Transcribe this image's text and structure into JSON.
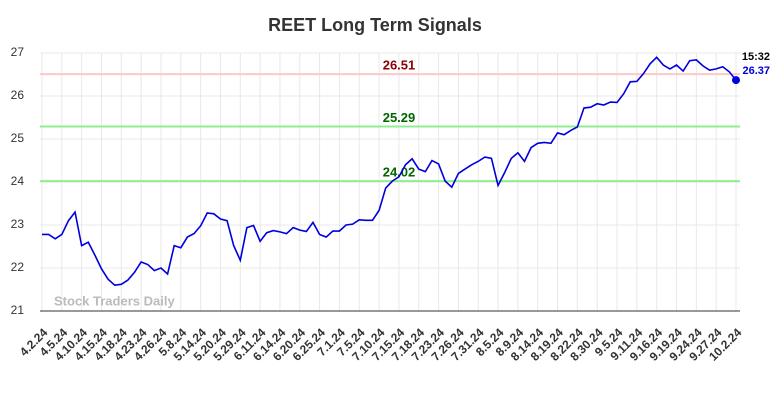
{
  "chart_data": {
    "type": "line",
    "title": "REET Long Term Signals",
    "categories": [
      "4.2.24",
      null,
      null,
      "4.5.24",
      null,
      null,
      "4.10.24",
      null,
      null,
      "4.15.24",
      null,
      null,
      "4.18.24",
      null,
      null,
      "4.23.24",
      null,
      null,
      "4.26.24",
      null,
      null,
      "5.8.24",
      null,
      null,
      "5.14.24",
      null,
      null,
      "5.20.24",
      null,
      null,
      "5.29.24",
      null,
      null,
      "6.11.24",
      null,
      null,
      "6.14.24",
      null,
      null,
      "6.20.24",
      null,
      null,
      "6.25.24",
      null,
      null,
      "7.1.24",
      null,
      null,
      "7.5.24",
      null,
      null,
      "7.10.24",
      null,
      null,
      "7.15.24",
      null,
      null,
      "7.18.24",
      null,
      null,
      "7.23.24",
      null,
      null,
      "7.26.24",
      null,
      null,
      "7.31.24",
      null,
      null,
      "8.5.24",
      null,
      null,
      "8.9.24",
      null,
      null,
      "8.14.24",
      null,
      null,
      "8.19.24",
      null,
      null,
      "8.22.24",
      null,
      null,
      "8.30.24",
      null,
      null,
      "9.5.24",
      null,
      null,
      "9.11.24",
      null,
      null,
      "9.16.24",
      null,
      null,
      "9.19.24",
      null,
      null,
      "9.24.24",
      null,
      null,
      "9.27.24",
      null,
      null,
      "10.2.24"
    ],
    "values": [
      22.78,
      22.78,
      22.68,
      22.78,
      23.1,
      23.3,
      22.52,
      22.6,
      22.3,
      21.98,
      21.74,
      21.6,
      21.62,
      21.72,
      21.9,
      22.14,
      22.08,
      21.94,
      22.0,
      21.86,
      22.52,
      22.47,
      22.72,
      22.8,
      22.98,
      23.28,
      23.26,
      23.14,
      23.1,
      22.52,
      22.18,
      22.94,
      22.99,
      22.62,
      22.82,
      22.87,
      22.84,
      22.8,
      22.94,
      22.88,
      22.85,
      23.06,
      22.78,
      22.72,
      22.86,
      22.86,
      23.0,
      23.02,
      23.12,
      23.11,
      23.11,
      23.34,
      23.86,
      24.02,
      24.12,
      24.4,
      24.54,
      24.3,
      24.24,
      24.5,
      24.42,
      24.02,
      23.88,
      24.2,
      24.3,
      24.4,
      24.48,
      24.58,
      24.55,
      23.92,
      24.22,
      24.55,
      24.68,
      24.48,
      24.8,
      24.9,
      24.92,
      24.9,
      25.14,
      25.1,
      25.2,
      25.28,
      25.72,
      25.74,
      25.82,
      25.79,
      25.86,
      25.85,
      26.05,
      26.33,
      26.34,
      26.52,
      26.75,
      26.9,
      26.72,
      26.63,
      26.72,
      26.58,
      26.82,
      26.84,
      26.7,
      26.6,
      26.63,
      26.68,
      26.56,
      26.37
    ],
    "color": "#0000dd",
    "ylim": [
      21,
      27
    ],
    "yticks": [
      21,
      22,
      23,
      24,
      25,
      26,
      27
    ],
    "grid": true,
    "levels": [
      {
        "value": 26.51,
        "color": "#ffc8c8",
        "label_color": "#8b0000"
      },
      {
        "value": 25.29,
        "color": "#90ee90",
        "label_color": "#006400"
      },
      {
        "value": 24.02,
        "color": "#90ee90",
        "label_color": "#006400"
      }
    ],
    "last_time": "15:32",
    "watermark": "Stock Traders Daily"
  }
}
